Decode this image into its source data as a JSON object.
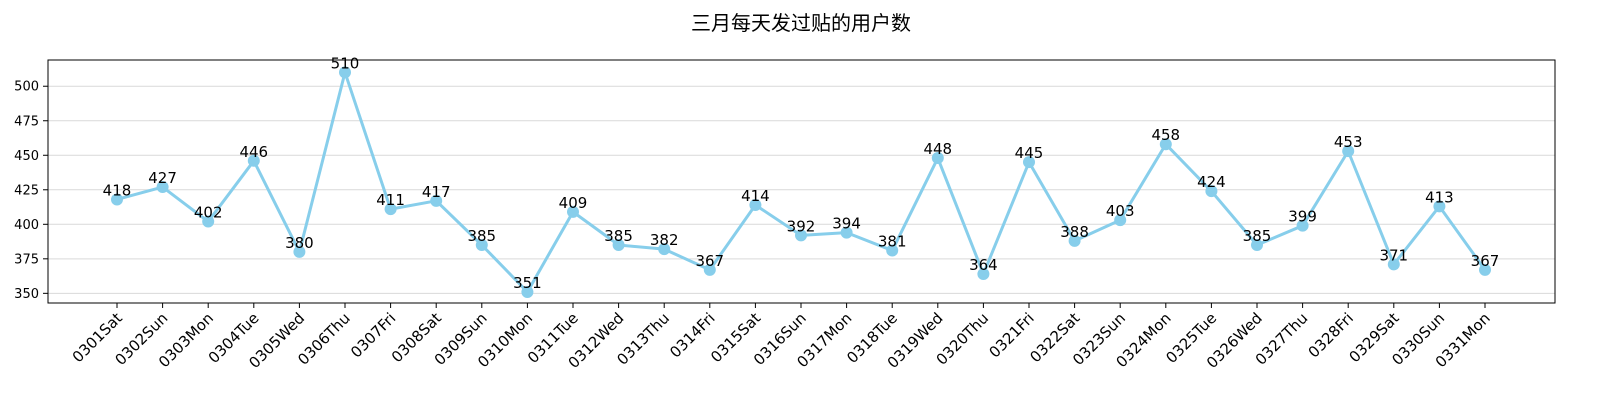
{
  "chart_data": {
    "type": "line",
    "title": "三月每天发过贴的用户数",
    "xlabel": "",
    "ylabel": "",
    "ylim": [
      343,
      519
    ],
    "yticks": [
      350,
      375,
      400,
      425,
      450,
      475,
      500
    ],
    "grid": "horizontal",
    "legend": "none",
    "color": "#87CEEB",
    "categories": [
      "0301Sat",
      "0302Sun",
      "0303Mon",
      "0304Tue",
      "0305Wed",
      "0306Thu",
      "0307Fri",
      "0308Sat",
      "0309Sun",
      "0310Mon",
      "0311Tue",
      "0312Wed",
      "0313Thu",
      "0314Fri",
      "0315Sat",
      "0316Sun",
      "0317Mon",
      "0318Tue",
      "0319Wed",
      "0320Thu",
      "0321Fri",
      "0322Sat",
      "0323Sun",
      "0324Mon",
      "0325Tue",
      "0326Wed",
      "0327Thu",
      "0328Fri",
      "0329Sat",
      "0330Sun",
      "0331Mon"
    ],
    "values": [
      418,
      427,
      402,
      446,
      380,
      510,
      411,
      417,
      385,
      351,
      409,
      385,
      382,
      367,
      414,
      392,
      394,
      381,
      448,
      364,
      445,
      388,
      403,
      458,
      424,
      385,
      399,
      453,
      371,
      413,
      367
    ]
  }
}
